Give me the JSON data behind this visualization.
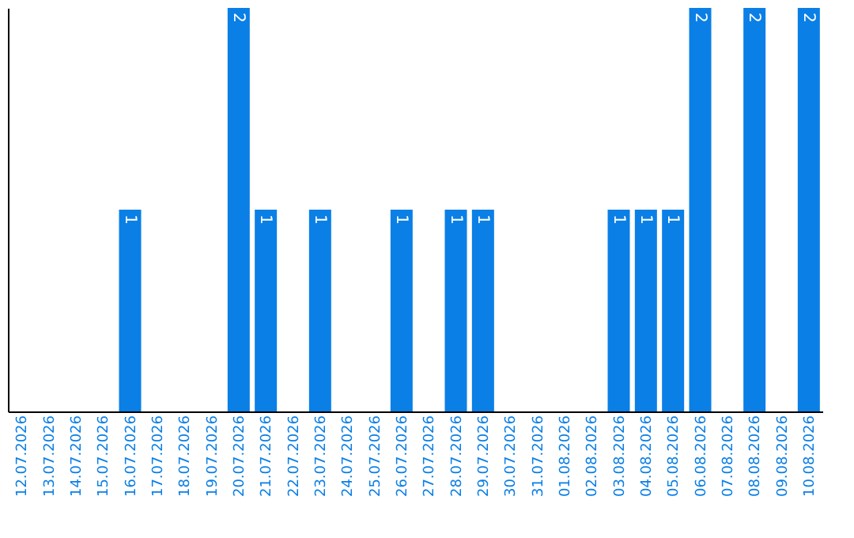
{
  "chart_data": {
    "type": "bar",
    "categories": [
      "12.07.2026",
      "13.07.2026",
      "14.07.2026",
      "15.07.2026",
      "16.07.2026",
      "17.07.2026",
      "18.07.2026",
      "19.07.2026",
      "20.07.2026",
      "21.07.2026",
      "22.07.2026",
      "23.07.2026",
      "24.07.2026",
      "25.07.2026",
      "26.07.2026",
      "27.07.2026",
      "28.07.2026",
      "29.07.2026",
      "30.07.2026",
      "31.07.2026",
      "01.08.2026",
      "02.08.2026",
      "03.08.2026",
      "04.08.2026",
      "05.08.2026",
      "06.08.2026",
      "07.08.2026",
      "08.08.2026",
      "09.08.2026",
      "10.08.2026"
    ],
    "values": [
      0,
      0,
      0,
      0,
      1,
      0,
      0,
      0,
      2,
      1,
      0,
      1,
      0,
      0,
      1,
      0,
      1,
      1,
      0,
      0,
      0,
      0,
      1,
      1,
      1,
      2,
      0,
      2,
      0,
      2
    ],
    "value_labels": [
      null,
      null,
      null,
      null,
      "1",
      null,
      null,
      null,
      "2",
      "1",
      null,
      "1",
      null,
      null,
      "1",
      null,
      "1",
      "1",
      null,
      null,
      null,
      null,
      "1",
      "1",
      "1",
      "2",
      null,
      "2",
      null,
      "2"
    ],
    "color": "#0a7fe6",
    "ylim": [
      0,
      2
    ],
    "tick_labels": "x",
    "grid": false
  }
}
